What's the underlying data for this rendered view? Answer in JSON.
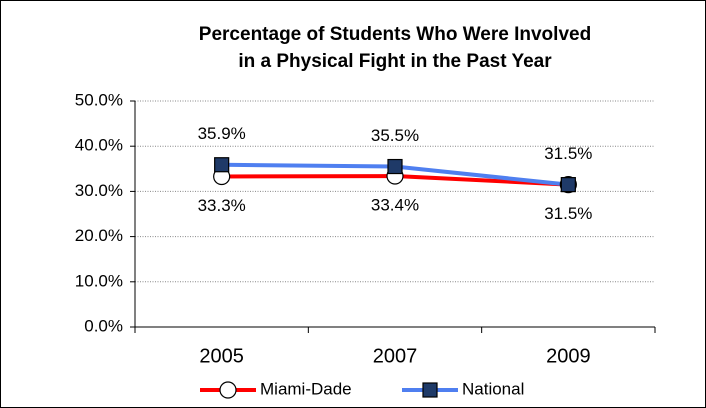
{
  "chart_data": {
    "type": "line",
    "title": [
      "Percentage of Students Who Were Involved",
      "in a Physical Fight in the Past Year"
    ],
    "categories": [
      "2005",
      "2007",
      "2009"
    ],
    "series": [
      {
        "name": "Miami-Dade",
        "color": "#ff0000",
        "marker": "circle",
        "marker_color": "#ffffff",
        "values": [
          33.3,
          33.4,
          31.5
        ],
        "value_labels": [
          "33.3%",
          "33.4%",
          "31.5%"
        ]
      },
      {
        "name": "National",
        "color": "#4f7ff0",
        "marker": "square",
        "marker_color": "#1f3a68",
        "values": [
          35.9,
          35.5,
          31.5
        ],
        "value_labels": [
          "35.9%",
          "35.5%",
          "31.5%"
        ]
      }
    ],
    "ylim": [
      0,
      50
    ],
    "yticks": [
      {
        "value": 0,
        "label": "0.0%"
      },
      {
        "value": 10,
        "label": "10.0%"
      },
      {
        "value": 20,
        "label": "20.0%"
      },
      {
        "value": 30,
        "label": "30.0%"
      },
      {
        "value": 40,
        "label": "40.0%"
      },
      {
        "value": 50,
        "label": "50.0%"
      }
    ],
    "grid": true,
    "legend": "bottom"
  }
}
